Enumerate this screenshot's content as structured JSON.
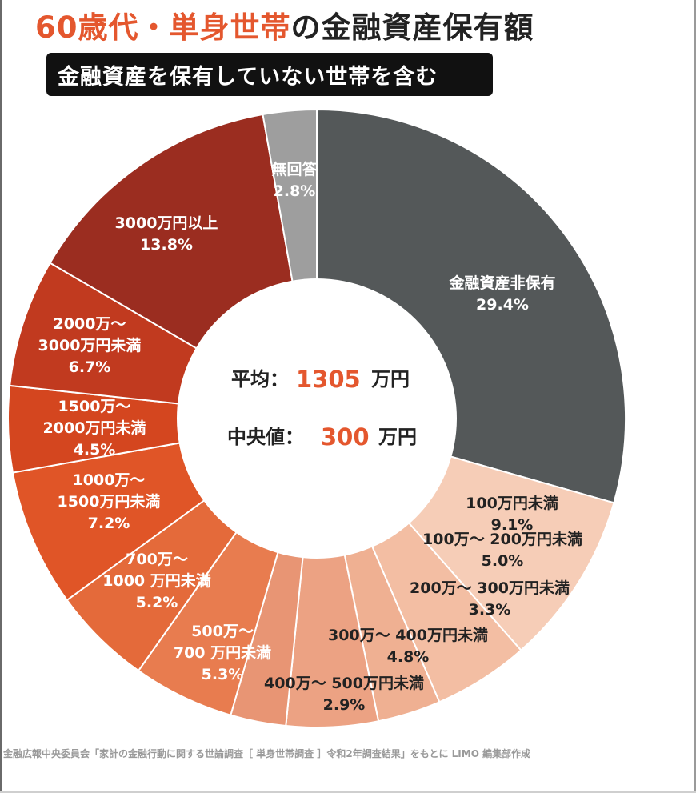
{
  "title": {
    "accent": "60歳代・単身世帯",
    "rest": "の金融資産保有額"
  },
  "subtitle": "金融資産を保有していない世帯を含む",
  "summary": {
    "mean_label": "平均：",
    "mean_value": "1305",
    "median_label": "中央値：",
    "median_value": "300",
    "unit": "万円"
  },
  "source": "金融広報中央委員会「家計の金融行動に関する世論調査［ 単身世帯調査 ］令和2年調査結果」をもとに LIMO 編集部作成",
  "chart_data": {
    "type": "pie",
    "style": "donut",
    "unit": "%",
    "slices": [
      {
        "label": "金融資産非保有",
        "value": 29.4,
        "display": "29.4%",
        "color": "#545859",
        "text_color": "#ffffff"
      },
      {
        "label": "100万円未満",
        "value": 9.1,
        "display": "9.1%",
        "color": "#f6cdb7",
        "text_color": "#222222"
      },
      {
        "label": "100万～ 200万円未満",
        "value": 5.0,
        "display": "5.0%",
        "color": "#f3bea3",
        "text_color": "#222222"
      },
      {
        "label": "200万～ 300万円未満",
        "value": 3.3,
        "display": "3.3%",
        "color": "#efb092",
        "text_color": "#222222"
      },
      {
        "label": "300万～ 400万円未満",
        "value": 4.8,
        "display": "4.8%",
        "color": "#eca283",
        "text_color": "#222222"
      },
      {
        "label": "400万～ 500万円未満",
        "value": 2.9,
        "display": "2.9%",
        "color": "#e89574",
        "text_color": "#222222"
      },
      {
        "label": "500万～ 700 万円未満",
        "value": 5.3,
        "display": "5.3%",
        "color": "#e87c4f",
        "text_color": "#ffffff"
      },
      {
        "label": "700万～ 1000 万円未満",
        "value": 5.2,
        "display": "5.2%",
        "color": "#e46a3a",
        "text_color": "#ffffff"
      },
      {
        "label": "1000万～ 1500万円未満",
        "value": 7.2,
        "display": "7.2%",
        "color": "#e05527",
        "text_color": "#ffffff"
      },
      {
        "label": "1500万～ 2000万円未満",
        "value": 4.5,
        "display": "4.5%",
        "color": "#d4461f",
        "text_color": "#ffffff"
      },
      {
        "label": "2000万～ 3000万円未満",
        "value": 6.7,
        "display": "6.7%",
        "color": "#c13a1f",
        "text_color": "#ffffff"
      },
      {
        "label": "3000万円以上",
        "value": 13.8,
        "display": "13.8%",
        "color": "#9b2d20",
        "text_color": "#ffffff"
      },
      {
        "label": "無回答",
        "value": 2.8,
        "display": "2.8%",
        "color": "#9e9e9e",
        "text_color": "#ffffff"
      }
    ]
  }
}
